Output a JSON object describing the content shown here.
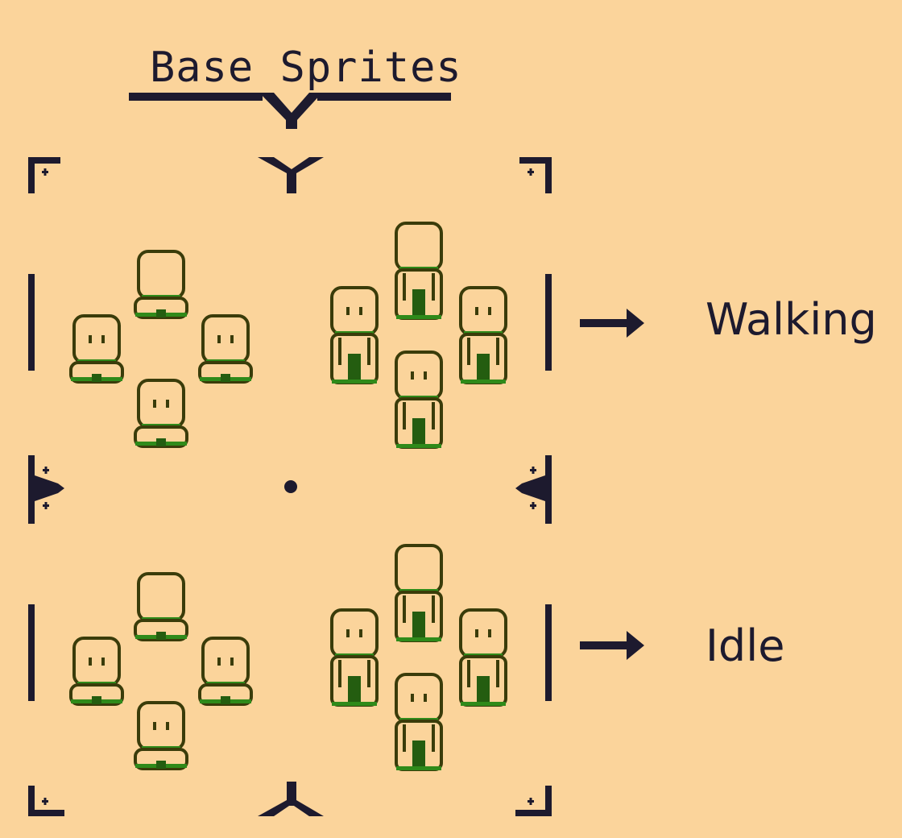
{
  "header": {
    "title": "Base Sprites"
  },
  "rows": [
    {
      "label": "Walking"
    },
    {
      "label": "Idle"
    }
  ],
  "colors": {
    "background": "#fbd49b",
    "ink": "#1d1a2e",
    "outline": "#3a3c0a",
    "accent_green": "#2f8a1a",
    "leg_fill": "#245d10"
  },
  "icons": [
    "corner-bracket-icon",
    "arrow-right-icon",
    "center-dot-icon",
    "sprite-figure-icon"
  ]
}
